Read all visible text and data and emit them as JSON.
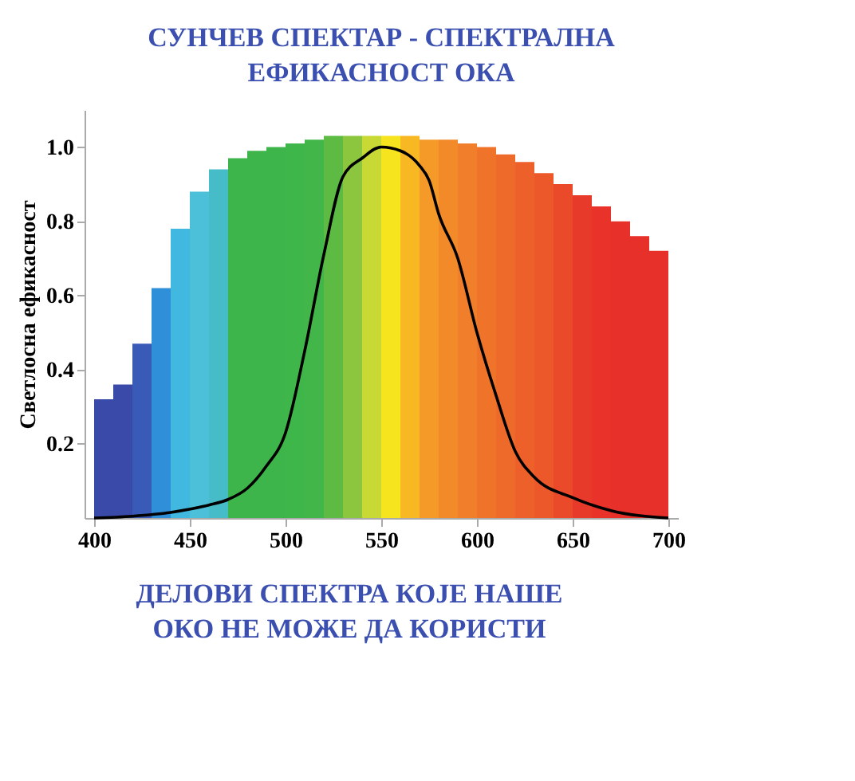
{
  "chart_data": {
    "type": "bar",
    "title": [
      "СУНЧЕВ СПЕКТАР - СПЕКТРАЛНА",
      "ЕФИКАСНОСТ ОКА"
    ],
    "ylabel": "Светлосна ефикасност",
    "annotations": [
      "ДЕЛОВИ СПЕКТРА КОЈЕ НАШЕ ОКО НЕ МОЖЕ ДА КОРИСТИ"
    ],
    "xlim": [
      395,
      705
    ],
    "xticks": [
      400,
      450,
      500,
      550,
      600,
      650,
      700
    ],
    "ylim": [
      0,
      1.1
    ],
    "yticks": [
      0.2,
      0.4,
      0.6,
      0.8,
      {
        "value": 1.0,
        "label": "1.0"
      }
    ],
    "grid": false,
    "legend": false,
    "series": [
      {
        "x": [
          405,
          415,
          425,
          435,
          445,
          455,
          465,
          475,
          485,
          495,
          505,
          515,
          525,
          535,
          545,
          555,
          565,
          575,
          585,
          595,
          605,
          615,
          625,
          635,
          645,
          655,
          665,
          675,
          685,
          695
        ],
        "values": [
          0.32,
          0.36,
          0.47,
          0.62,
          0.78,
          0.88,
          0.94,
          0.97,
          0.99,
          1.0,
          1.01,
          1.02,
          1.03,
          1.03,
          1.03,
          1.03,
          1.03,
          1.02,
          1.02,
          1.01,
          1.0,
          0.98,
          0.96,
          0.93,
          0.9,
          0.87,
          0.84,
          0.8,
          0.76,
          0.72
        ],
        "colors": [
          "#3a4aa8",
          "#3a4aa8",
          "#3a5ab8",
          "#2f8fd8",
          "#40b8e0",
          "#4cc0d8",
          "#46bcc8",
          "#3db54a",
          "#3db54a",
          "#3db54a",
          "#3fb64a",
          "#42b648",
          "#5dbb44",
          "#8cc63f",
          "#c8d834",
          "#f6e41e",
          "#f8b824",
          "#f59a28",
          "#f28a2a",
          "#f07e2a",
          "#ef742a",
          "#ee6a2a",
          "#ed602a",
          "#ec582a",
          "#ea4a2a",
          "#e83a2a",
          "#e8322a",
          "#e8302a",
          "#e8302a",
          "#e8302a"
        ]
      },
      {
        "type": "line",
        "color": "#000000",
        "x": [
          400,
          420,
          440,
          460,
          470,
          480,
          490,
          500,
          510,
          520,
          530,
          540,
          550,
          560,
          570,
          575,
          580,
          590,
          600,
          610,
          620,
          630,
          650,
          670,
          700
        ],
        "values": [
          0.0,
          0.005,
          0.015,
          0.035,
          0.05,
          0.08,
          0.14,
          0.23,
          0.45,
          0.71,
          0.92,
          0.97,
          1.0,
          0.99,
          0.95,
          0.91,
          0.82,
          0.7,
          0.5,
          0.33,
          0.18,
          0.11,
          0.055,
          0.02,
          0.0
        ]
      }
    ]
  }
}
